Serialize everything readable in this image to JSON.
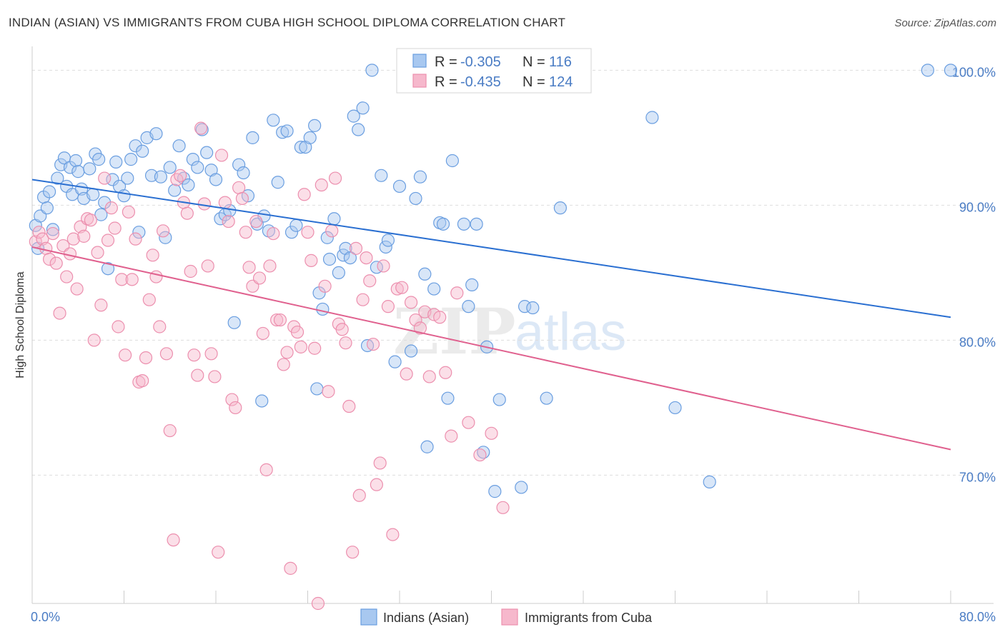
{
  "title": "INDIAN (ASIAN) VS IMMIGRANTS FROM CUBA HIGH SCHOOL DIPLOMA CORRELATION CHART",
  "source": "Source: ZipAtlas.com",
  "watermark": {
    "zip": "ZIP",
    "atlas": "atlas"
  },
  "colors": {
    "blue_fill": "#a8c8f0",
    "blue_stroke": "#6a9ee0",
    "blue_line": "#2a6fd1",
    "pink_fill": "#f6b8cc",
    "pink_stroke": "#ec8fae",
    "pink_line": "#e0608e",
    "grid": "#dddddd",
    "axis_text": "#4a7cc4"
  },
  "legend": {
    "rows": [
      {
        "r_label": "R = ",
        "r_value": "-0.305",
        "n_label": "N = ",
        "n_value": "116",
        "color": "blue"
      },
      {
        "r_label": "R = ",
        "r_value": "-0.435",
        "n_label": "N = ",
        "n_value": "124",
        "color": "pink"
      }
    ]
  },
  "chart_data": {
    "type": "scatter",
    "title": "INDIAN (ASIAN) VS IMMIGRANTS FROM CUBA HIGH SCHOOL DIPLOMA CORRELATION CHART",
    "xlabel": "",
    "ylabel": "High School Diploma",
    "xlim": [
      0,
      80
    ],
    "ylim": [
      60.5,
      101.5
    ],
    "x_tick_labels": [
      "0.0%",
      "80.0%"
    ],
    "y_ticks": [
      70,
      80,
      90,
      100
    ],
    "y_tick_labels": [
      "70.0%",
      "80.0%",
      "90.0%",
      "100.0%"
    ],
    "grid": true,
    "legend_position": "top-center",
    "series": [
      {
        "name": "Indians (Asian)",
        "color": "blue",
        "r": -0.305,
        "n": 116,
        "trend": {
          "x": [
            0,
            80
          ],
          "y": [
            91.9,
            81.7
          ]
        },
        "points": [
          [
            0.3,
            88.5
          ],
          [
            0.5,
            86.8
          ],
          [
            0.7,
            89.2
          ],
          [
            1.0,
            90.6
          ],
          [
            1.3,
            89.8
          ],
          [
            1.5,
            91.0
          ],
          [
            1.8,
            88.2
          ],
          [
            2.2,
            92.0
          ],
          [
            2.5,
            93.0
          ],
          [
            2.8,
            93.5
          ],
          [
            3.0,
            91.4
          ],
          [
            3.3,
            92.8
          ],
          [
            3.5,
            90.8
          ],
          [
            3.8,
            93.3
          ],
          [
            4.0,
            92.5
          ],
          [
            4.3,
            91.2
          ],
          [
            4.5,
            90.5
          ],
          [
            5.0,
            92.7
          ],
          [
            5.3,
            90.8
          ],
          [
            5.5,
            93.8
          ],
          [
            5.8,
            93.4
          ],
          [
            6.0,
            89.3
          ],
          [
            6.3,
            90.2
          ],
          [
            6.6,
            85.3
          ],
          [
            7.0,
            91.9
          ],
          [
            7.3,
            93.2
          ],
          [
            7.6,
            91.4
          ],
          [
            8.0,
            90.7
          ],
          [
            8.3,
            92.0
          ],
          [
            8.6,
            93.4
          ],
          [
            9.0,
            94.4
          ],
          [
            9.3,
            88.0
          ],
          [
            9.6,
            94.0
          ],
          [
            10.0,
            95.0
          ],
          [
            10.4,
            92.2
          ],
          [
            10.8,
            95.3
          ],
          [
            11.2,
            92.1
          ],
          [
            11.6,
            87.6
          ],
          [
            12.0,
            92.8
          ],
          [
            12.4,
            91.1
          ],
          [
            12.8,
            94.4
          ],
          [
            13.2,
            92.0
          ],
          [
            13.6,
            91.5
          ],
          [
            14.0,
            93.4
          ],
          [
            14.4,
            92.8
          ],
          [
            14.8,
            95.6
          ],
          [
            15.2,
            93.9
          ],
          [
            15.6,
            92.6
          ],
          [
            16.0,
            91.9
          ],
          [
            16.4,
            89.0
          ],
          [
            16.8,
            89.3
          ],
          [
            17.2,
            89.6
          ],
          [
            17.6,
            81.3
          ],
          [
            18.0,
            93.0
          ],
          [
            18.4,
            92.4
          ],
          [
            18.8,
            90.7
          ],
          [
            19.2,
            95.0
          ],
          [
            19.6,
            88.6
          ],
          [
            20.0,
            75.5
          ],
          [
            20.2,
            89.2
          ],
          [
            20.6,
            88.1
          ],
          [
            21.0,
            96.3
          ],
          [
            21.4,
            91.7
          ],
          [
            21.8,
            95.4
          ],
          [
            22.2,
            95.5
          ],
          [
            22.6,
            88.0
          ],
          [
            23.0,
            88.5
          ],
          [
            23.4,
            94.3
          ],
          [
            23.8,
            94.3
          ],
          [
            24.2,
            95.0
          ],
          [
            24.6,
            95.9
          ],
          [
            24.8,
            76.4
          ],
          [
            25.0,
            83.5
          ],
          [
            25.3,
            82.3
          ],
          [
            25.7,
            87.6
          ],
          [
            25.9,
            86.0
          ],
          [
            26.3,
            89.0
          ],
          [
            26.7,
            85.0
          ],
          [
            27.1,
            86.3
          ],
          [
            27.3,
            86.8
          ],
          [
            27.7,
            86.1
          ],
          [
            28.0,
            96.6
          ],
          [
            28.4,
            95.6
          ],
          [
            28.8,
            97.2
          ],
          [
            29.2,
            79.6
          ],
          [
            29.6,
            100.0
          ],
          [
            30.0,
            85.4
          ],
          [
            30.4,
            92.2
          ],
          [
            30.8,
            86.9
          ],
          [
            31.0,
            87.4
          ],
          [
            31.6,
            78.4
          ],
          [
            32.0,
            91.4
          ],
          [
            33.0,
            79.2
          ],
          [
            33.4,
            90.5
          ],
          [
            33.8,
            92.1
          ],
          [
            34.2,
            84.9
          ],
          [
            34.4,
            72.1
          ],
          [
            35.0,
            83.8
          ],
          [
            35.5,
            88.7
          ],
          [
            35.8,
            88.6
          ],
          [
            36.2,
            75.7
          ],
          [
            36.6,
            93.3
          ],
          [
            37.6,
            88.6
          ],
          [
            38.0,
            82.5
          ],
          [
            38.3,
            84.1
          ],
          [
            38.7,
            88.6
          ],
          [
            39.3,
            71.7
          ],
          [
            39.6,
            79.5
          ],
          [
            40.3,
            68.8
          ],
          [
            40.7,
            75.6
          ],
          [
            42.6,
            69.1
          ],
          [
            42.9,
            82.5
          ],
          [
            43.6,
            82.4
          ],
          [
            44.8,
            75.7
          ],
          [
            46.0,
            89.8
          ],
          [
            54.0,
            96.5
          ],
          [
            56.0,
            75.0
          ],
          [
            59.0,
            69.5
          ],
          [
            78.0,
            100.0
          ],
          [
            80.0,
            100.0
          ],
          [
            45.5,
            100.0
          ],
          [
            46.0,
            100.0
          ]
        ]
      },
      {
        "name": "Immigrants from Cuba",
        "color": "pink",
        "r": -0.435,
        "n": 124,
        "trend": {
          "x": [
            0,
            80
          ],
          "y": [
            86.9,
            71.9
          ]
        },
        "points": [
          [
            0.3,
            87.3
          ],
          [
            0.6,
            88.0
          ],
          [
            0.9,
            87.5
          ],
          [
            1.2,
            86.8
          ],
          [
            1.5,
            86.0
          ],
          [
            1.8,
            87.9
          ],
          [
            2.1,
            85.7
          ],
          [
            2.4,
            82.0
          ],
          [
            2.7,
            87.0
          ],
          [
            3.0,
            84.7
          ],
          [
            3.3,
            86.4
          ],
          [
            3.6,
            87.5
          ],
          [
            3.9,
            83.8
          ],
          [
            4.2,
            88.4
          ],
          [
            4.5,
            87.7
          ],
          [
            4.8,
            89.0
          ],
          [
            5.1,
            88.9
          ],
          [
            5.4,
            80.0
          ],
          [
            5.7,
            86.5
          ],
          [
            6.0,
            82.6
          ],
          [
            6.3,
            92.0
          ],
          [
            6.6,
            87.4
          ],
          [
            6.9,
            89.8
          ],
          [
            7.2,
            88.3
          ],
          [
            7.5,
            81.0
          ],
          [
            7.8,
            84.5
          ],
          [
            8.1,
            78.9
          ],
          [
            8.4,
            89.5
          ],
          [
            8.7,
            84.5
          ],
          [
            9.0,
            87.5
          ],
          [
            9.3,
            76.9
          ],
          [
            9.6,
            77.0
          ],
          [
            9.9,
            78.7
          ],
          [
            10.2,
            83.0
          ],
          [
            10.5,
            86.3
          ],
          [
            10.8,
            84.7
          ],
          [
            11.1,
            81.0
          ],
          [
            11.4,
            88.1
          ],
          [
            11.7,
            79.0
          ],
          [
            12.0,
            73.3
          ],
          [
            12.3,
            65.2
          ],
          [
            12.6,
            91.9
          ],
          [
            12.9,
            92.2
          ],
          [
            13.2,
            90.2
          ],
          [
            13.5,
            89.4
          ],
          [
            13.8,
            85.1
          ],
          [
            14.1,
            78.9
          ],
          [
            14.4,
            77.4
          ],
          [
            14.7,
            95.7
          ],
          [
            15.0,
            90.1
          ],
          [
            15.3,
            85.5
          ],
          [
            15.6,
            79.0
          ],
          [
            15.9,
            77.3
          ],
          [
            16.2,
            64.3
          ],
          [
            16.5,
            93.7
          ],
          [
            16.8,
            90.2
          ],
          [
            17.1,
            88.8
          ],
          [
            17.4,
            75.6
          ],
          [
            17.7,
            75.0
          ],
          [
            18.0,
            91.3
          ],
          [
            18.3,
            90.5
          ],
          [
            18.6,
            88.0
          ],
          [
            18.9,
            85.4
          ],
          [
            19.2,
            84.0
          ],
          [
            19.5,
            88.8
          ],
          [
            19.8,
            84.6
          ],
          [
            20.1,
            80.5
          ],
          [
            20.4,
            70.4
          ],
          [
            20.7,
            85.5
          ],
          [
            21.0,
            87.9
          ],
          [
            21.3,
            81.5
          ],
          [
            21.6,
            81.5
          ],
          [
            21.9,
            78.2
          ],
          [
            22.2,
            79.1
          ],
          [
            22.5,
            63.1
          ],
          [
            22.8,
            81.0
          ],
          [
            23.1,
            80.6
          ],
          [
            23.4,
            79.5
          ],
          [
            23.7,
            90.8
          ],
          [
            24.0,
            88.0
          ],
          [
            24.3,
            85.9
          ],
          [
            24.6,
            79.4
          ],
          [
            24.9,
            60.5
          ],
          [
            25.2,
            91.5
          ],
          [
            25.5,
            84.0
          ],
          [
            25.8,
            76.2
          ],
          [
            26.1,
            88.1
          ],
          [
            26.4,
            92.0
          ],
          [
            26.7,
            81.2
          ],
          [
            27.0,
            80.8
          ],
          [
            27.3,
            79.8
          ],
          [
            27.6,
            75.1
          ],
          [
            27.9,
            64.3
          ],
          [
            28.2,
            86.8
          ],
          [
            28.5,
            68.5
          ],
          [
            28.8,
            83.0
          ],
          [
            29.1,
            86.1
          ],
          [
            29.4,
            84.4
          ],
          [
            29.7,
            79.7
          ],
          [
            30.0,
            69.3
          ],
          [
            30.3,
            70.9
          ],
          [
            30.6,
            85.5
          ],
          [
            31.0,
            82.5
          ],
          [
            31.4,
            65.6
          ],
          [
            31.8,
            83.8
          ],
          [
            32.2,
            83.9
          ],
          [
            32.6,
            77.5
          ],
          [
            33.0,
            82.8
          ],
          [
            33.4,
            81.5
          ],
          [
            33.8,
            80.9
          ],
          [
            34.2,
            82.1
          ],
          [
            34.6,
            77.3
          ],
          [
            35.0,
            81.9
          ],
          [
            35.5,
            81.7
          ],
          [
            36.0,
            77.6
          ],
          [
            36.5,
            72.9
          ],
          [
            37.0,
            83.5
          ],
          [
            38.0,
            73.9
          ],
          [
            39.0,
            71.5
          ],
          [
            40.0,
            73.1
          ],
          [
            41.0,
            67.6
          ]
        ]
      }
    ]
  },
  "bottom_legend": [
    {
      "label": "Indians (Asian)",
      "color": "blue"
    },
    {
      "label": "Immigrants from Cuba",
      "color": "pink"
    }
  ]
}
